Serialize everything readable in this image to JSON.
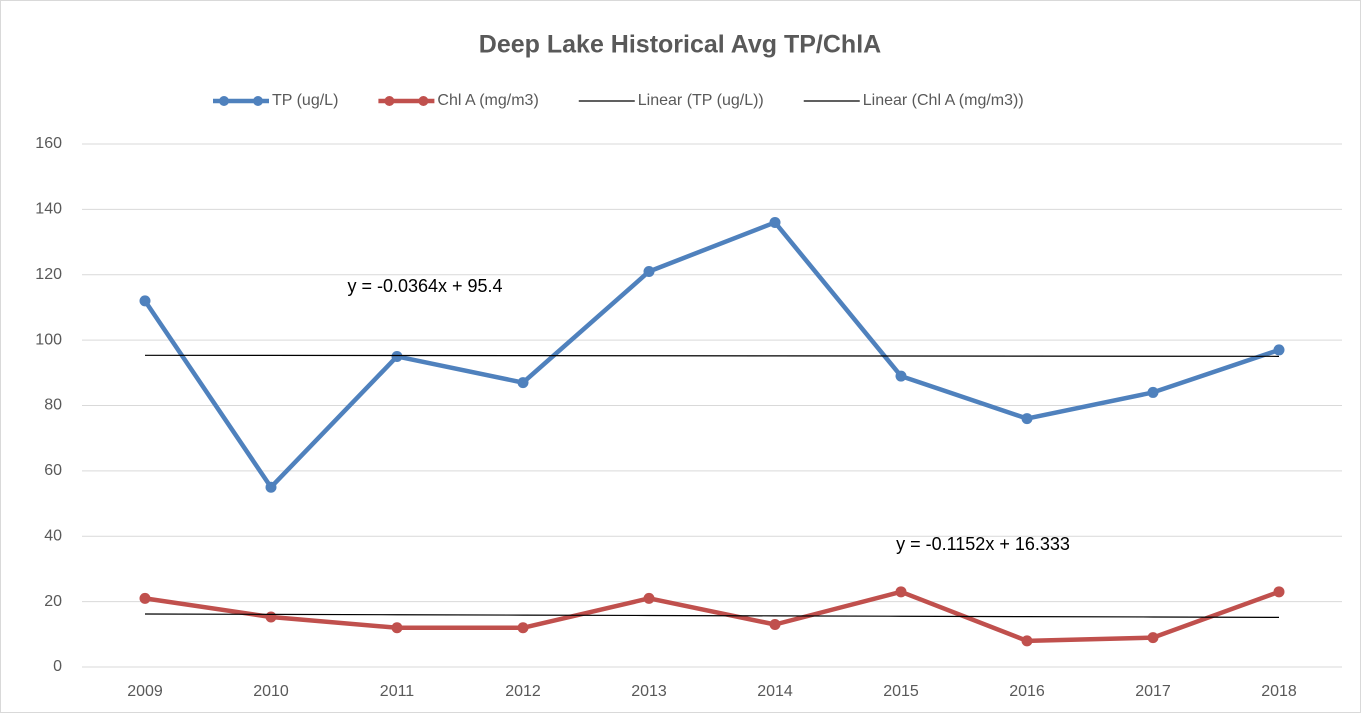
{
  "chart_data": {
    "type": "line",
    "title": "Deep Lake Historical Avg TP/ChlA",
    "categories": [
      "2009",
      "2010",
      "2011",
      "2012",
      "2013",
      "2014",
      "2015",
      "2016",
      "2017",
      "2018"
    ],
    "series": [
      {
        "name": "TP (ug/L)",
        "color": "#4f81bd",
        "markers": true,
        "values": [
          112,
          55,
          95,
          87,
          121,
          136,
          89,
          76,
          84,
          97
        ]
      },
      {
        "name": "Chl A (mg/m3)",
        "color": "#c0504d",
        "markers": true,
        "values": [
          21,
          15.3,
          12,
          12,
          21,
          13,
          23,
          8,
          9,
          23
        ]
      },
      {
        "name": "Linear (TP (ug/L))",
        "color": "#000000",
        "markers": false,
        "values": [
          95.36,
          95.33,
          95.29,
          95.25,
          95.22,
          95.18,
          95.15,
          95.11,
          95.07,
          95.04
        ]
      },
      {
        "name": "Linear (Chl A (mg/m3))",
        "color": "#000000",
        "markers": false,
        "values": [
          16.22,
          16.1,
          15.99,
          15.87,
          15.76,
          15.64,
          15.53,
          15.41,
          15.3,
          15.18
        ]
      }
    ],
    "annotations": [
      {
        "text": "y = -0.0364x + 95.4"
      },
      {
        "text": "y = -0.1152x + 16.333"
      }
    ],
    "ylim": [
      0,
      160
    ],
    "yticks": [
      0,
      20,
      40,
      60,
      80,
      100,
      120,
      140,
      160
    ],
    "grid": true,
    "legend": "top"
  }
}
